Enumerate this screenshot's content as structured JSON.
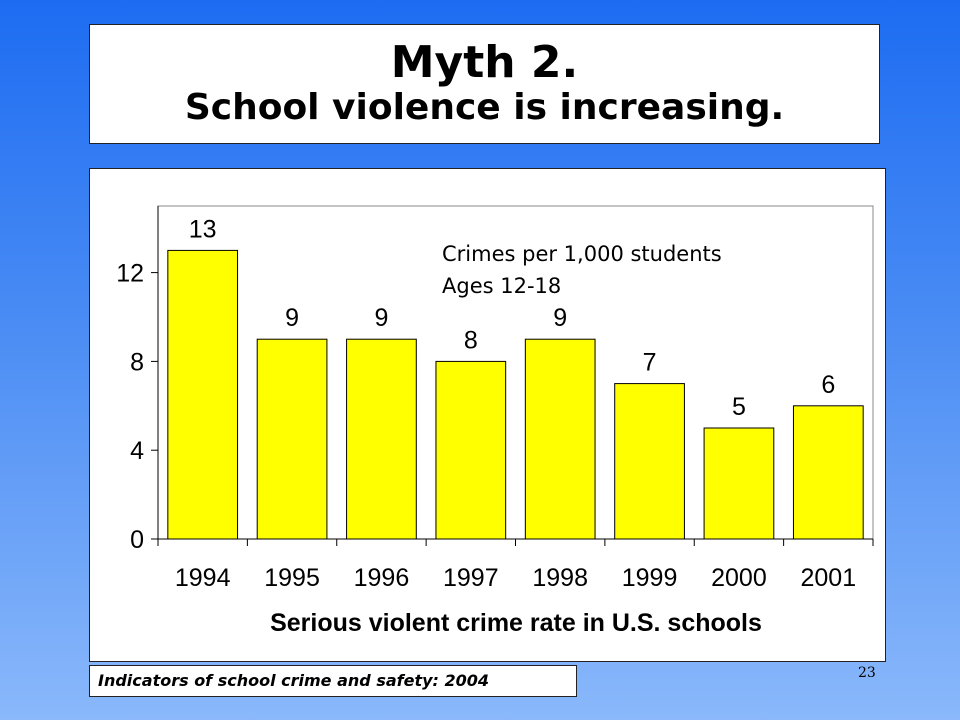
{
  "slide": {
    "title": "Myth 2.",
    "subtitle": "School violence is increasing.",
    "source": "Indicators of school crime and safety: 2004",
    "page_number": "23"
  },
  "chart_data": {
    "type": "bar",
    "categories": [
      "1994",
      "1995",
      "1996",
      "1997",
      "1998",
      "1999",
      "2000",
      "2001"
    ],
    "values": [
      13,
      9,
      9,
      8,
      9,
      7,
      5,
      6
    ],
    "data_labels": [
      "13",
      "9",
      "9",
      "8",
      "9",
      "7",
      "5",
      "6"
    ],
    "yticks": [
      0,
      4,
      8,
      12
    ],
    "ylim": [
      0,
      15
    ],
    "annotation_line1": "Crimes per 1,000 students",
    "annotation_line2": "Ages 12-18",
    "xlabel": "Serious violent crime rate in U.S. schools",
    "ylabel": "",
    "grid": false,
    "bar_color": "#ffff00",
    "bar_edge_color": "#000000"
  }
}
